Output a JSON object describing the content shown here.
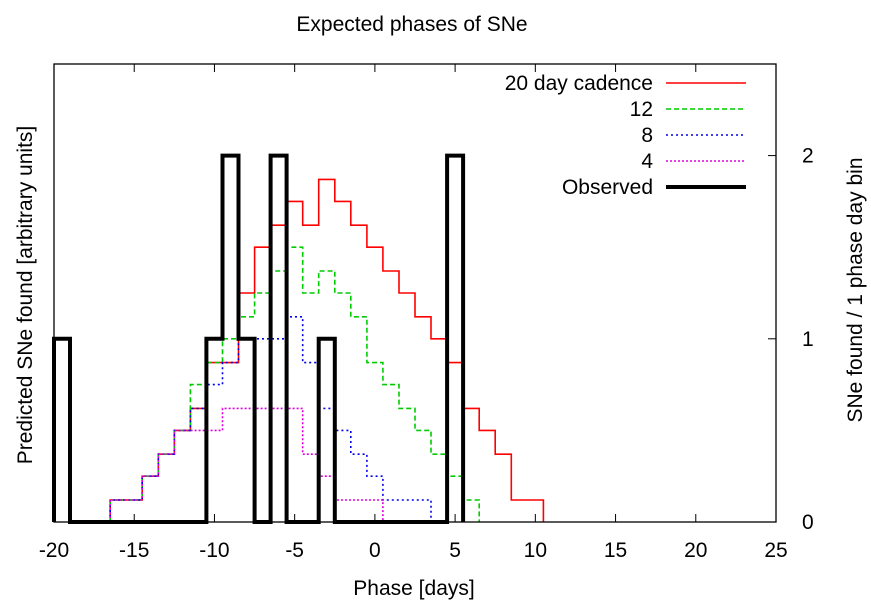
{
  "chart_data": {
    "type": "line",
    "title": "Expected phases of SNe",
    "xlabel": "Phase [days]",
    "ylabel": "Predicted SNe found [arbitrary units]",
    "y2label": "SNe found / 1 phase day bin",
    "xlim": [
      -20,
      25
    ],
    "ylim": [
      0,
      2.5
    ],
    "y2lim": [
      0,
      2.5
    ],
    "xticks": [
      -20,
      -15,
      -10,
      -5,
      0,
      5,
      10,
      15,
      20,
      25
    ],
    "y2ticks": [
      0,
      1,
      2
    ],
    "grid": false,
    "legend_position": "top-right",
    "step_width": 1,
    "series": [
      {
        "name": "20 day cadence",
        "axis": "left",
        "color": "#ff0000",
        "dash": "none",
        "stroke": 1.6,
        "bins": [
          {
            "from": -16.5,
            "value": 0.12
          },
          {
            "from": -14.5,
            "value": 0.25
          },
          {
            "from": -13.5,
            "value": 0.37
          },
          {
            "from": -12.5,
            "value": 0.5
          },
          {
            "from": -11.5,
            "value": 0.62
          },
          {
            "from": -10.5,
            "value": 0.87
          },
          {
            "from": -8.5,
            "value": 1.25
          },
          {
            "from": -7.5,
            "value": 1.5
          },
          {
            "from": -6.5,
            "value": 1.62
          },
          {
            "from": -5.5,
            "value": 1.75
          },
          {
            "from": -4.5,
            "value": 1.62
          },
          {
            "from": -3.5,
            "value": 1.87
          },
          {
            "from": -2.5,
            "value": 1.75
          },
          {
            "from": -1.5,
            "value": 1.62
          },
          {
            "from": -0.5,
            "value": 1.5
          },
          {
            "from": 0.5,
            "value": 1.37
          },
          {
            "from": 1.5,
            "value": 1.25
          },
          {
            "from": 2.5,
            "value": 1.12
          },
          {
            "from": 3.5,
            "value": 1.0
          },
          {
            "from": 4.5,
            "value": 0.87
          },
          {
            "from": 5.5,
            "value": 0.62
          },
          {
            "from": 6.5,
            "value": 0.5
          },
          {
            "from": 7.5,
            "value": 0.37
          },
          {
            "from": 8.5,
            "value": 0.12
          },
          {
            "from": 10.5,
            "value": 0
          }
        ]
      },
      {
        "name": "12",
        "axis": "left",
        "color": "#00cc00",
        "dash": "5,3",
        "stroke": 1.6,
        "bins": [
          {
            "from": -16.5,
            "value": 0.12
          },
          {
            "from": -14.5,
            "value": 0.25
          },
          {
            "from": -13.5,
            "value": 0.37
          },
          {
            "from": -12.5,
            "value": 0.5
          },
          {
            "from": -11.5,
            "value": 0.75
          },
          {
            "from": -10.5,
            "value": 0.87
          },
          {
            "from": -9.5,
            "value": 1.0
          },
          {
            "from": -8.5,
            "value": 1.12
          },
          {
            "from": -7.5,
            "value": 1.25
          },
          {
            "from": -6.5,
            "value": 1.37
          },
          {
            "from": -5.5,
            "value": 1.5
          },
          {
            "from": -4.5,
            "value": 1.25
          },
          {
            "from": -3.5,
            "value": 1.37
          },
          {
            "from": -2.5,
            "value": 1.25
          },
          {
            "from": -1.5,
            "value": 1.12
          },
          {
            "from": -0.5,
            "value": 0.87
          },
          {
            "from": 0.5,
            "value": 0.75
          },
          {
            "from": 1.5,
            "value": 0.62
          },
          {
            "from": 2.5,
            "value": 0.5
          },
          {
            "from": 3.5,
            "value": 0.37
          },
          {
            "from": 4.5,
            "value": 0.25
          },
          {
            "from": 5.5,
            "value": 0.12
          },
          {
            "from": 6.5,
            "value": 0
          }
        ]
      },
      {
        "name": "8",
        "axis": "left",
        "color": "#0000ee",
        "dash": "2,3",
        "stroke": 1.6,
        "bins": [
          {
            "from": -16.5,
            "value": 0.12
          },
          {
            "from": -14.5,
            "value": 0.25
          },
          {
            "from": -13.5,
            "value": 0.37
          },
          {
            "from": -12.5,
            "value": 0.5
          },
          {
            "from": -11.5,
            "value": 0.62
          },
          {
            "from": -10.5,
            "value": 0.75
          },
          {
            "from": -9.5,
            "value": 0.87
          },
          {
            "from": -8.5,
            "value": 1.0
          },
          {
            "from": -5.5,
            "value": 1.12
          },
          {
            "from": -4.5,
            "value": 0.87
          },
          {
            "from": -3.5,
            "value": 0.62
          },
          {
            "from": -2.5,
            "value": 0.5
          },
          {
            "from": -1.5,
            "value": 0.37
          },
          {
            "from": -0.5,
            "value": 0.25
          },
          {
            "from": 0.5,
            "value": 0.12
          },
          {
            "from": 2.5,
            "value": 0.12
          },
          {
            "from": 3.5,
            "value": 0
          }
        ]
      },
      {
        "name": "4",
        "axis": "left",
        "color": "#dd00dd",
        "dash": "2,2",
        "stroke": 1.6,
        "bins": [
          {
            "from": -16.5,
            "value": 0.12
          },
          {
            "from": -14.5,
            "value": 0.25
          },
          {
            "from": -13.5,
            "value": 0.37
          },
          {
            "from": -12.5,
            "value": 0.5
          },
          {
            "from": -10.5,
            "value": 0.5
          },
          {
            "from": -9.5,
            "value": 0.62
          },
          {
            "from": -4.5,
            "value": 0.37
          },
          {
            "from": -3.5,
            "value": 0.25
          },
          {
            "from": -2.5,
            "value": 0.12
          },
          {
            "from": -1.5,
            "value": 0.12
          },
          {
            "from": 0.5,
            "value": 0
          }
        ]
      },
      {
        "name": "Observed",
        "axis": "right",
        "color": "#000000",
        "dash": "none",
        "stroke": 4,
        "bins": [
          {
            "from": -20,
            "value": 1
          },
          {
            "from": -19,
            "value": 0
          },
          {
            "from": -10.5,
            "value": 1
          },
          {
            "from": -9.5,
            "value": 2
          },
          {
            "from": -8.5,
            "value": 1
          },
          {
            "from": -7.5,
            "value": 0
          },
          {
            "from": -6.5,
            "value": 2
          },
          {
            "from": -5.5,
            "value": 0
          },
          {
            "from": -3.5,
            "value": 1
          },
          {
            "from": -2.5,
            "value": 0
          },
          {
            "from": 4.5,
            "value": 2
          },
          {
            "from": 5.5,
            "value": 0
          }
        ]
      }
    ]
  }
}
